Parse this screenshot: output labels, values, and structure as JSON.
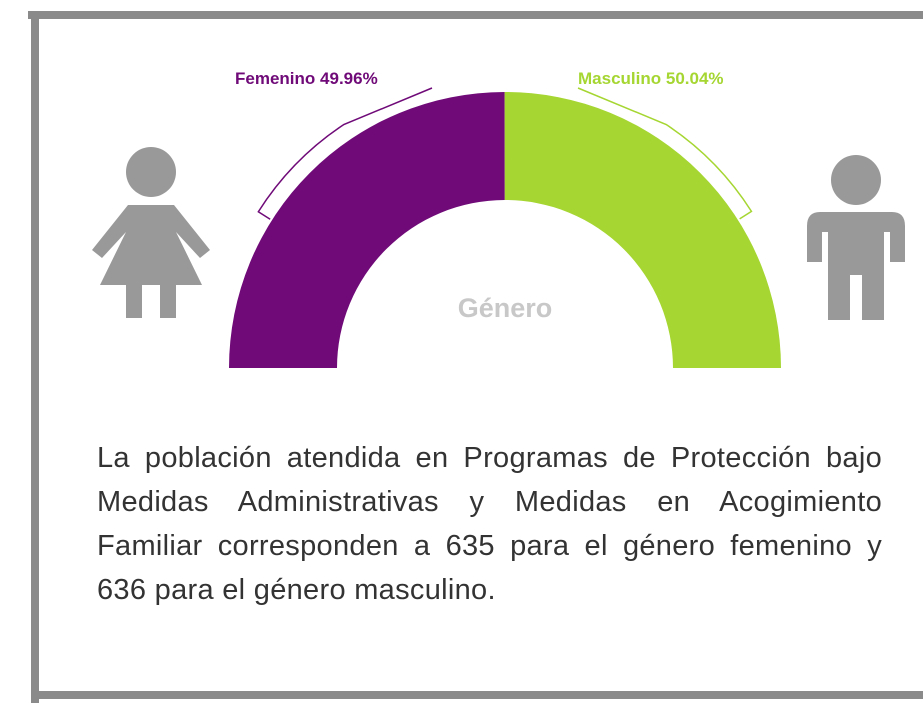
{
  "chart_data": {
    "type": "pie",
    "shape": "half-donut",
    "categories": [
      "Femenino",
      "Masculino"
    ],
    "values": [
      49.96,
      50.04
    ],
    "value_labels": [
      "49.96%",
      "50.04%"
    ],
    "colors": [
      "#6f0a78",
      "#a5d631"
    ],
    "center_label": "Género"
  },
  "description": "La población atendida en Programas de Protección bajo Medidas Administrativas y Medidas en Acogimiento Familiar corresponden a 635 para el género femenino y 636 para el género masculino."
}
